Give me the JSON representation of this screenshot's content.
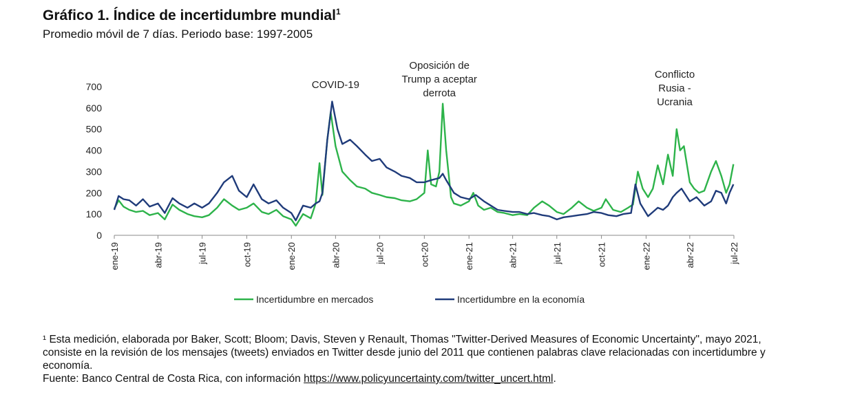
{
  "header": {
    "title": "Gráfico 1. Índice de incertidumbre mundial",
    "title_sup": "1",
    "subtitle": "Promedio móvil de 7 días. Periodo base: 1997-2005"
  },
  "chart_data": {
    "type": "line",
    "title": "Gráfico 1. Índice de incertidumbre mundial",
    "xlabel": "",
    "ylabel": "",
    "ylim": [
      0,
      700
    ],
    "yticks": [
      0,
      100,
      200,
      300,
      400,
      500,
      600,
      700
    ],
    "x_ticks": [
      "ene-19",
      "abr-19",
      "jul-19",
      "oct-19",
      "ene-20",
      "abr-20",
      "jul-20",
      "oct-20",
      "ene-21",
      "abr-21",
      "jul-21",
      "oct-21",
      "ene-22",
      "abr-22",
      "jul-22"
    ],
    "legend_position": "bottom",
    "grid": false,
    "annotations": [
      {
        "lines": [
          "COVID-19"
        ],
        "at": "2020-04"
      },
      {
        "lines": [
          "Oposición de",
          "Trump a aceptar",
          "derrota"
        ],
        "at": "2020-11"
      },
      {
        "lines": [
          "Conflicto",
          "Rusia -",
          "Ucrania"
        ],
        "at": "2022-03"
      }
    ],
    "series": [
      {
        "name": "Incertidumbre en mercados",
        "color": "#2db34a",
        "points": [
          [
            "2019-01-01",
            125
          ],
          [
            "2019-01-10",
            165
          ],
          [
            "2019-01-20",
            135
          ],
          [
            "2019-02-01",
            120
          ],
          [
            "2019-02-15",
            110
          ],
          [
            "2019-03-01",
            115
          ],
          [
            "2019-03-15",
            95
          ],
          [
            "2019-04-01",
            105
          ],
          [
            "2019-04-15",
            75
          ],
          [
            "2019-05-01",
            145
          ],
          [
            "2019-05-15",
            120
          ],
          [
            "2019-06-01",
            100
          ],
          [
            "2019-06-15",
            90
          ],
          [
            "2019-07-01",
            85
          ],
          [
            "2019-07-15",
            95
          ],
          [
            "2019-08-01",
            130
          ],
          [
            "2019-08-15",
            170
          ],
          [
            "2019-09-01",
            140
          ],
          [
            "2019-09-15",
            120
          ],
          [
            "2019-10-01",
            130
          ],
          [
            "2019-10-15",
            150
          ],
          [
            "2019-11-01",
            110
          ],
          [
            "2019-11-15",
            100
          ],
          [
            "2019-12-01",
            120
          ],
          [
            "2019-12-15",
            90
          ],
          [
            "2020-01-01",
            75
          ],
          [
            "2020-01-10",
            45
          ],
          [
            "2020-01-25",
            100
          ],
          [
            "2020-02-10",
            80
          ],
          [
            "2020-02-20",
            150
          ],
          [
            "2020-02-28",
            340
          ],
          [
            "2020-03-05",
            190
          ],
          [
            "2020-03-15",
            450
          ],
          [
            "2020-03-22",
            580
          ],
          [
            "2020-04-01",
            420
          ],
          [
            "2020-04-15",
            300
          ],
          [
            "2020-05-01",
            260
          ],
          [
            "2020-05-15",
            230
          ],
          [
            "2020-06-01",
            220
          ],
          [
            "2020-06-15",
            200
          ],
          [
            "2020-07-01",
            190
          ],
          [
            "2020-07-15",
            180
          ],
          [
            "2020-08-01",
            175
          ],
          [
            "2020-08-15",
            165
          ],
          [
            "2020-09-01",
            160
          ],
          [
            "2020-09-15",
            170
          ],
          [
            "2020-10-01",
            200
          ],
          [
            "2020-10-08",
            400
          ],
          [
            "2020-10-15",
            240
          ],
          [
            "2020-10-25",
            230
          ],
          [
            "2020-11-01",
            300
          ],
          [
            "2020-11-08",
            620
          ],
          [
            "2020-11-15",
            400
          ],
          [
            "2020-11-25",
            180
          ],
          [
            "2020-12-01",
            150
          ],
          [
            "2020-12-15",
            140
          ],
          [
            "2021-01-01",
            160
          ],
          [
            "2021-01-10",
            200
          ],
          [
            "2021-01-20",
            140
          ],
          [
            "2021-02-01",
            120
          ],
          [
            "2021-02-15",
            130
          ],
          [
            "2021-03-01",
            110
          ],
          [
            "2021-03-15",
            105
          ],
          [
            "2021-04-01",
            95
          ],
          [
            "2021-04-15",
            100
          ],
          [
            "2021-05-01",
            95
          ],
          [
            "2021-05-15",
            130
          ],
          [
            "2021-06-01",
            160
          ],
          [
            "2021-06-15",
            140
          ],
          [
            "2021-07-01",
            110
          ],
          [
            "2021-07-15",
            100
          ],
          [
            "2021-08-01",
            130
          ],
          [
            "2021-08-15",
            160
          ],
          [
            "2021-09-01",
            130
          ],
          [
            "2021-09-15",
            115
          ],
          [
            "2021-10-01",
            130
          ],
          [
            "2021-10-10",
            170
          ],
          [
            "2021-10-25",
            120
          ],
          [
            "2021-11-10",
            110
          ],
          [
            "2021-11-25",
            130
          ],
          [
            "2021-12-05",
            145
          ],
          [
            "2021-12-15",
            300
          ],
          [
            "2021-12-25",
            220
          ],
          [
            "2022-01-05",
            180
          ],
          [
            "2022-01-15",
            220
          ],
          [
            "2022-01-25",
            330
          ],
          [
            "2022-02-05",
            240
          ],
          [
            "2022-02-15",
            380
          ],
          [
            "2022-02-25",
            280
          ],
          [
            "2022-03-05",
            500
          ],
          [
            "2022-03-12",
            400
          ],
          [
            "2022-03-20",
            420
          ],
          [
            "2022-04-01",
            250
          ],
          [
            "2022-04-10",
            220
          ],
          [
            "2022-04-20",
            200
          ],
          [
            "2022-05-01",
            210
          ],
          [
            "2022-05-15",
            300
          ],
          [
            "2022-05-25",
            350
          ],
          [
            "2022-06-05",
            280
          ],
          [
            "2022-06-15",
            200
          ],
          [
            "2022-06-22",
            240
          ],
          [
            "2022-06-30",
            335
          ]
        ]
      },
      {
        "name": "Incertidumbre en la economía",
        "color": "#1f3b7a",
        "points": [
          [
            "2019-01-01",
            120
          ],
          [
            "2019-01-10",
            185
          ],
          [
            "2019-01-20",
            170
          ],
          [
            "2019-02-01",
            165
          ],
          [
            "2019-02-15",
            140
          ],
          [
            "2019-03-01",
            170
          ],
          [
            "2019-03-15",
            135
          ],
          [
            "2019-04-01",
            150
          ],
          [
            "2019-04-15",
            105
          ],
          [
            "2019-05-01",
            175
          ],
          [
            "2019-05-15",
            150
          ],
          [
            "2019-06-01",
            130
          ],
          [
            "2019-06-15",
            150
          ],
          [
            "2019-07-01",
            130
          ],
          [
            "2019-07-15",
            150
          ],
          [
            "2019-08-01",
            200
          ],
          [
            "2019-08-15",
            250
          ],
          [
            "2019-09-01",
            280
          ],
          [
            "2019-09-15",
            210
          ],
          [
            "2019-10-01",
            180
          ],
          [
            "2019-10-15",
            240
          ],
          [
            "2019-11-01",
            170
          ],
          [
            "2019-11-15",
            150
          ],
          [
            "2019-12-01",
            165
          ],
          [
            "2019-12-15",
            130
          ],
          [
            "2020-01-01",
            105
          ],
          [
            "2020-01-10",
            70
          ],
          [
            "2020-01-25",
            140
          ],
          [
            "2020-02-10",
            130
          ],
          [
            "2020-02-20",
            150
          ],
          [
            "2020-02-28",
            160
          ],
          [
            "2020-03-05",
            200
          ],
          [
            "2020-03-15",
            450
          ],
          [
            "2020-03-25",
            630
          ],
          [
            "2020-04-05",
            500
          ],
          [
            "2020-04-15",
            430
          ],
          [
            "2020-05-01",
            450
          ],
          [
            "2020-05-15",
            420
          ],
          [
            "2020-06-01",
            380
          ],
          [
            "2020-06-15",
            350
          ],
          [
            "2020-07-01",
            360
          ],
          [
            "2020-07-15",
            320
          ],
          [
            "2020-08-01",
            300
          ],
          [
            "2020-08-15",
            280
          ],
          [
            "2020-09-01",
            270
          ],
          [
            "2020-09-15",
            250
          ],
          [
            "2020-10-01",
            250
          ],
          [
            "2020-10-15",
            260
          ],
          [
            "2020-11-01",
            270
          ],
          [
            "2020-11-08",
            290
          ],
          [
            "2020-11-15",
            260
          ],
          [
            "2020-12-01",
            200
          ],
          [
            "2020-12-15",
            180
          ],
          [
            "2021-01-01",
            170
          ],
          [
            "2021-01-15",
            190
          ],
          [
            "2021-02-01",
            160
          ],
          [
            "2021-02-15",
            140
          ],
          [
            "2021-03-01",
            120
          ],
          [
            "2021-03-15",
            115
          ],
          [
            "2021-04-01",
            110
          ],
          [
            "2021-04-15",
            110
          ],
          [
            "2021-05-01",
            100
          ],
          [
            "2021-05-15",
            105
          ],
          [
            "2021-06-01",
            95
          ],
          [
            "2021-06-15",
            90
          ],
          [
            "2021-07-01",
            75
          ],
          [
            "2021-07-15",
            85
          ],
          [
            "2021-08-01",
            90
          ],
          [
            "2021-08-15",
            95
          ],
          [
            "2021-09-01",
            100
          ],
          [
            "2021-09-15",
            110
          ],
          [
            "2021-10-01",
            105
          ],
          [
            "2021-10-15",
            95
          ],
          [
            "2021-11-01",
            90
          ],
          [
            "2021-11-15",
            100
          ],
          [
            "2021-12-01",
            105
          ],
          [
            "2021-12-10",
            240
          ],
          [
            "2021-12-20",
            150
          ],
          [
            "2022-01-05",
            90
          ],
          [
            "2022-01-15",
            110
          ],
          [
            "2022-01-25",
            130
          ],
          [
            "2022-02-05",
            120
          ],
          [
            "2022-02-15",
            140
          ],
          [
            "2022-02-25",
            180
          ],
          [
            "2022-03-05",
            200
          ],
          [
            "2022-03-15",
            220
          ],
          [
            "2022-04-01",
            160
          ],
          [
            "2022-04-15",
            180
          ],
          [
            "2022-05-01",
            140
          ],
          [
            "2022-05-15",
            160
          ],
          [
            "2022-05-25",
            210
          ],
          [
            "2022-06-05",
            200
          ],
          [
            "2022-06-15",
            150
          ],
          [
            "2022-06-22",
            200
          ],
          [
            "2022-06-30",
            240
          ]
        ]
      }
    ]
  },
  "footnote": {
    "line1": "¹ Esta medición, elaborada por Baker, Scott; Bloom; Davis, Steven y Renault, Thomas \"Twitter-Derived Measures of Economic Uncertainty\", mayo 2021, consiste en la revisión de los mensajes (tweets) enviados en Twitter desde junio del 2011 que contienen palabras clave relacionadas con incertidumbre y economía.",
    "source_prefix": "Fuente: Banco Central de Costa Rica, con información ",
    "source_url": "https://www.policyuncertainty.com/twitter_uncert.html",
    "source_suffix": "."
  }
}
